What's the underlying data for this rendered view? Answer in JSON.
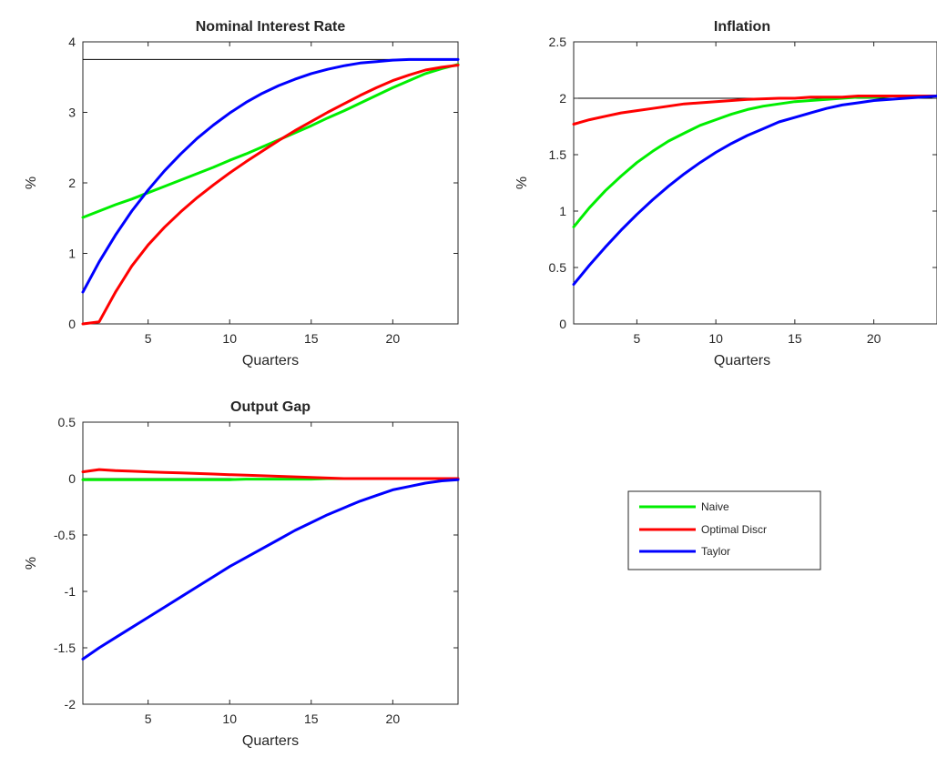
{
  "colors": {
    "naive": "#00ee00",
    "optimal": "#ff0000",
    "taylor": "#0000ff",
    "reference": "#000000"
  },
  "legend": {
    "entries": [
      "Naive",
      "Optimal Discr",
      "Taylor"
    ]
  },
  "chart_data": [
    {
      "type": "line",
      "title": "Nominal Interest Rate",
      "xlabel": "Quarters",
      "ylabel": "%",
      "xlim": [
        1,
        24
      ],
      "ylim": [
        0,
        4
      ],
      "xticks": [
        "5",
        "10",
        "15",
        "20"
      ],
      "yticks": [
        "0",
        "1",
        "2",
        "3",
        "4"
      ],
      "x": [
        1,
        2,
        3,
        4,
        5,
        6,
        7,
        8,
        9,
        10,
        11,
        12,
        13,
        14,
        15,
        16,
        17,
        18,
        19,
        20,
        21,
        22,
        23,
        24
      ],
      "reference_line": 3.75,
      "series": [
        {
          "name": "Naive",
          "color": "#00ee00",
          "values": [
            1.51,
            1.6,
            1.69,
            1.77,
            1.86,
            1.95,
            2.04,
            2.13,
            2.22,
            2.32,
            2.41,
            2.51,
            2.61,
            2.71,
            2.81,
            2.92,
            3.02,
            3.13,
            3.24,
            3.35,
            3.45,
            3.55,
            3.62,
            3.68
          ]
        },
        {
          "name": "Optimal Discr",
          "color": "#ff0000",
          "values": [
            0.0,
            0.03,
            0.45,
            0.82,
            1.12,
            1.37,
            1.59,
            1.79,
            1.97,
            2.14,
            2.3,
            2.45,
            2.6,
            2.74,
            2.87,
            3.0,
            3.12,
            3.24,
            3.35,
            3.45,
            3.53,
            3.6,
            3.64,
            3.67
          ]
        },
        {
          "name": "Taylor",
          "color": "#0000ff",
          "values": [
            0.45,
            0.88,
            1.26,
            1.6,
            1.9,
            2.17,
            2.41,
            2.63,
            2.82,
            2.99,
            3.14,
            3.27,
            3.38,
            3.47,
            3.55,
            3.61,
            3.66,
            3.7,
            3.72,
            3.74,
            3.75,
            3.75,
            3.75,
            3.75
          ]
        }
      ]
    },
    {
      "type": "line",
      "title": "Inflation",
      "xlabel": "Quarters",
      "ylabel": "%",
      "xlim": [
        1,
        24
      ],
      "ylim": [
        0,
        2.5
      ],
      "xticks": [
        "5",
        "10",
        "15",
        "20"
      ],
      "yticks": [
        "0",
        "0.5",
        "1",
        "1.5",
        "2",
        "2.5"
      ],
      "x": [
        1,
        2,
        3,
        4,
        5,
        6,
        7,
        8,
        9,
        10,
        11,
        12,
        13,
        14,
        15,
        16,
        17,
        18,
        19,
        20,
        21,
        22,
        23,
        24
      ],
      "reference_line": 2.0,
      "series": [
        {
          "name": "Naive",
          "color": "#00ee00",
          "values": [
            0.86,
            1.03,
            1.18,
            1.31,
            1.43,
            1.53,
            1.62,
            1.69,
            1.76,
            1.81,
            1.86,
            1.9,
            1.93,
            1.95,
            1.97,
            1.98,
            1.99,
            2.0,
            2.01,
            2.01,
            2.02,
            2.02,
            2.02,
            2.02
          ]
        },
        {
          "name": "Optimal Discr",
          "color": "#ff0000",
          "values": [
            1.77,
            1.81,
            1.84,
            1.87,
            1.89,
            1.91,
            1.93,
            1.95,
            1.96,
            1.97,
            1.98,
            1.99,
            1.995,
            2.0,
            2.0,
            2.01,
            2.01,
            2.01,
            2.02,
            2.02,
            2.02,
            2.02,
            2.02,
            2.02
          ]
        },
        {
          "name": "Taylor",
          "color": "#0000ff",
          "values": [
            0.35,
            0.52,
            0.68,
            0.83,
            0.97,
            1.1,
            1.22,
            1.33,
            1.43,
            1.52,
            1.6,
            1.67,
            1.73,
            1.79,
            1.83,
            1.87,
            1.91,
            1.94,
            1.96,
            1.98,
            1.99,
            2.0,
            2.01,
            2.02
          ]
        }
      ]
    },
    {
      "type": "line",
      "title": "Output Gap",
      "xlabel": "Quarters",
      "ylabel": "%",
      "xlim": [
        1,
        24
      ],
      "ylim": [
        -2,
        0.5
      ],
      "xticks": [
        "5",
        "10",
        "15",
        "20"
      ],
      "yticks": [
        "-2",
        "-1.5",
        "-1",
        "-0.5",
        "0",
        "0.5"
      ],
      "x": [
        1,
        2,
        3,
        4,
        5,
        6,
        7,
        8,
        9,
        10,
        11,
        12,
        13,
        14,
        15,
        16,
        17,
        18,
        19,
        20,
        21,
        22,
        23,
        24
      ],
      "reference_line": 0.0,
      "series": [
        {
          "name": "Naive",
          "color": "#00ee00",
          "values": [
            -0.01,
            -0.01,
            -0.01,
            -0.01,
            -0.01,
            -0.01,
            -0.01,
            -0.01,
            -0.01,
            -0.01,
            -0.005,
            -0.005,
            -0.005,
            -0.005,
            -0.005,
            0,
            0,
            0,
            0,
            0,
            0,
            0,
            0,
            0
          ]
        },
        {
          "name": "Optimal Discr",
          "color": "#ff0000",
          "values": [
            0.06,
            0.08,
            0.07,
            0.065,
            0.06,
            0.055,
            0.05,
            0.045,
            0.04,
            0.035,
            0.03,
            0.025,
            0.02,
            0.015,
            0.01,
            0.005,
            0,
            0,
            0,
            0,
            0,
            0,
            0,
            0
          ]
        },
        {
          "name": "Taylor",
          "color": "#0000ff",
          "values": [
            -1.6,
            -1.5,
            -1.41,
            -1.32,
            -1.23,
            -1.14,
            -1.05,
            -0.96,
            -0.87,
            -0.78,
            -0.7,
            -0.62,
            -0.54,
            -0.46,
            -0.39,
            -0.32,
            -0.26,
            -0.2,
            -0.15,
            -0.1,
            -0.07,
            -0.04,
            -0.02,
            -0.01
          ]
        }
      ]
    }
  ]
}
